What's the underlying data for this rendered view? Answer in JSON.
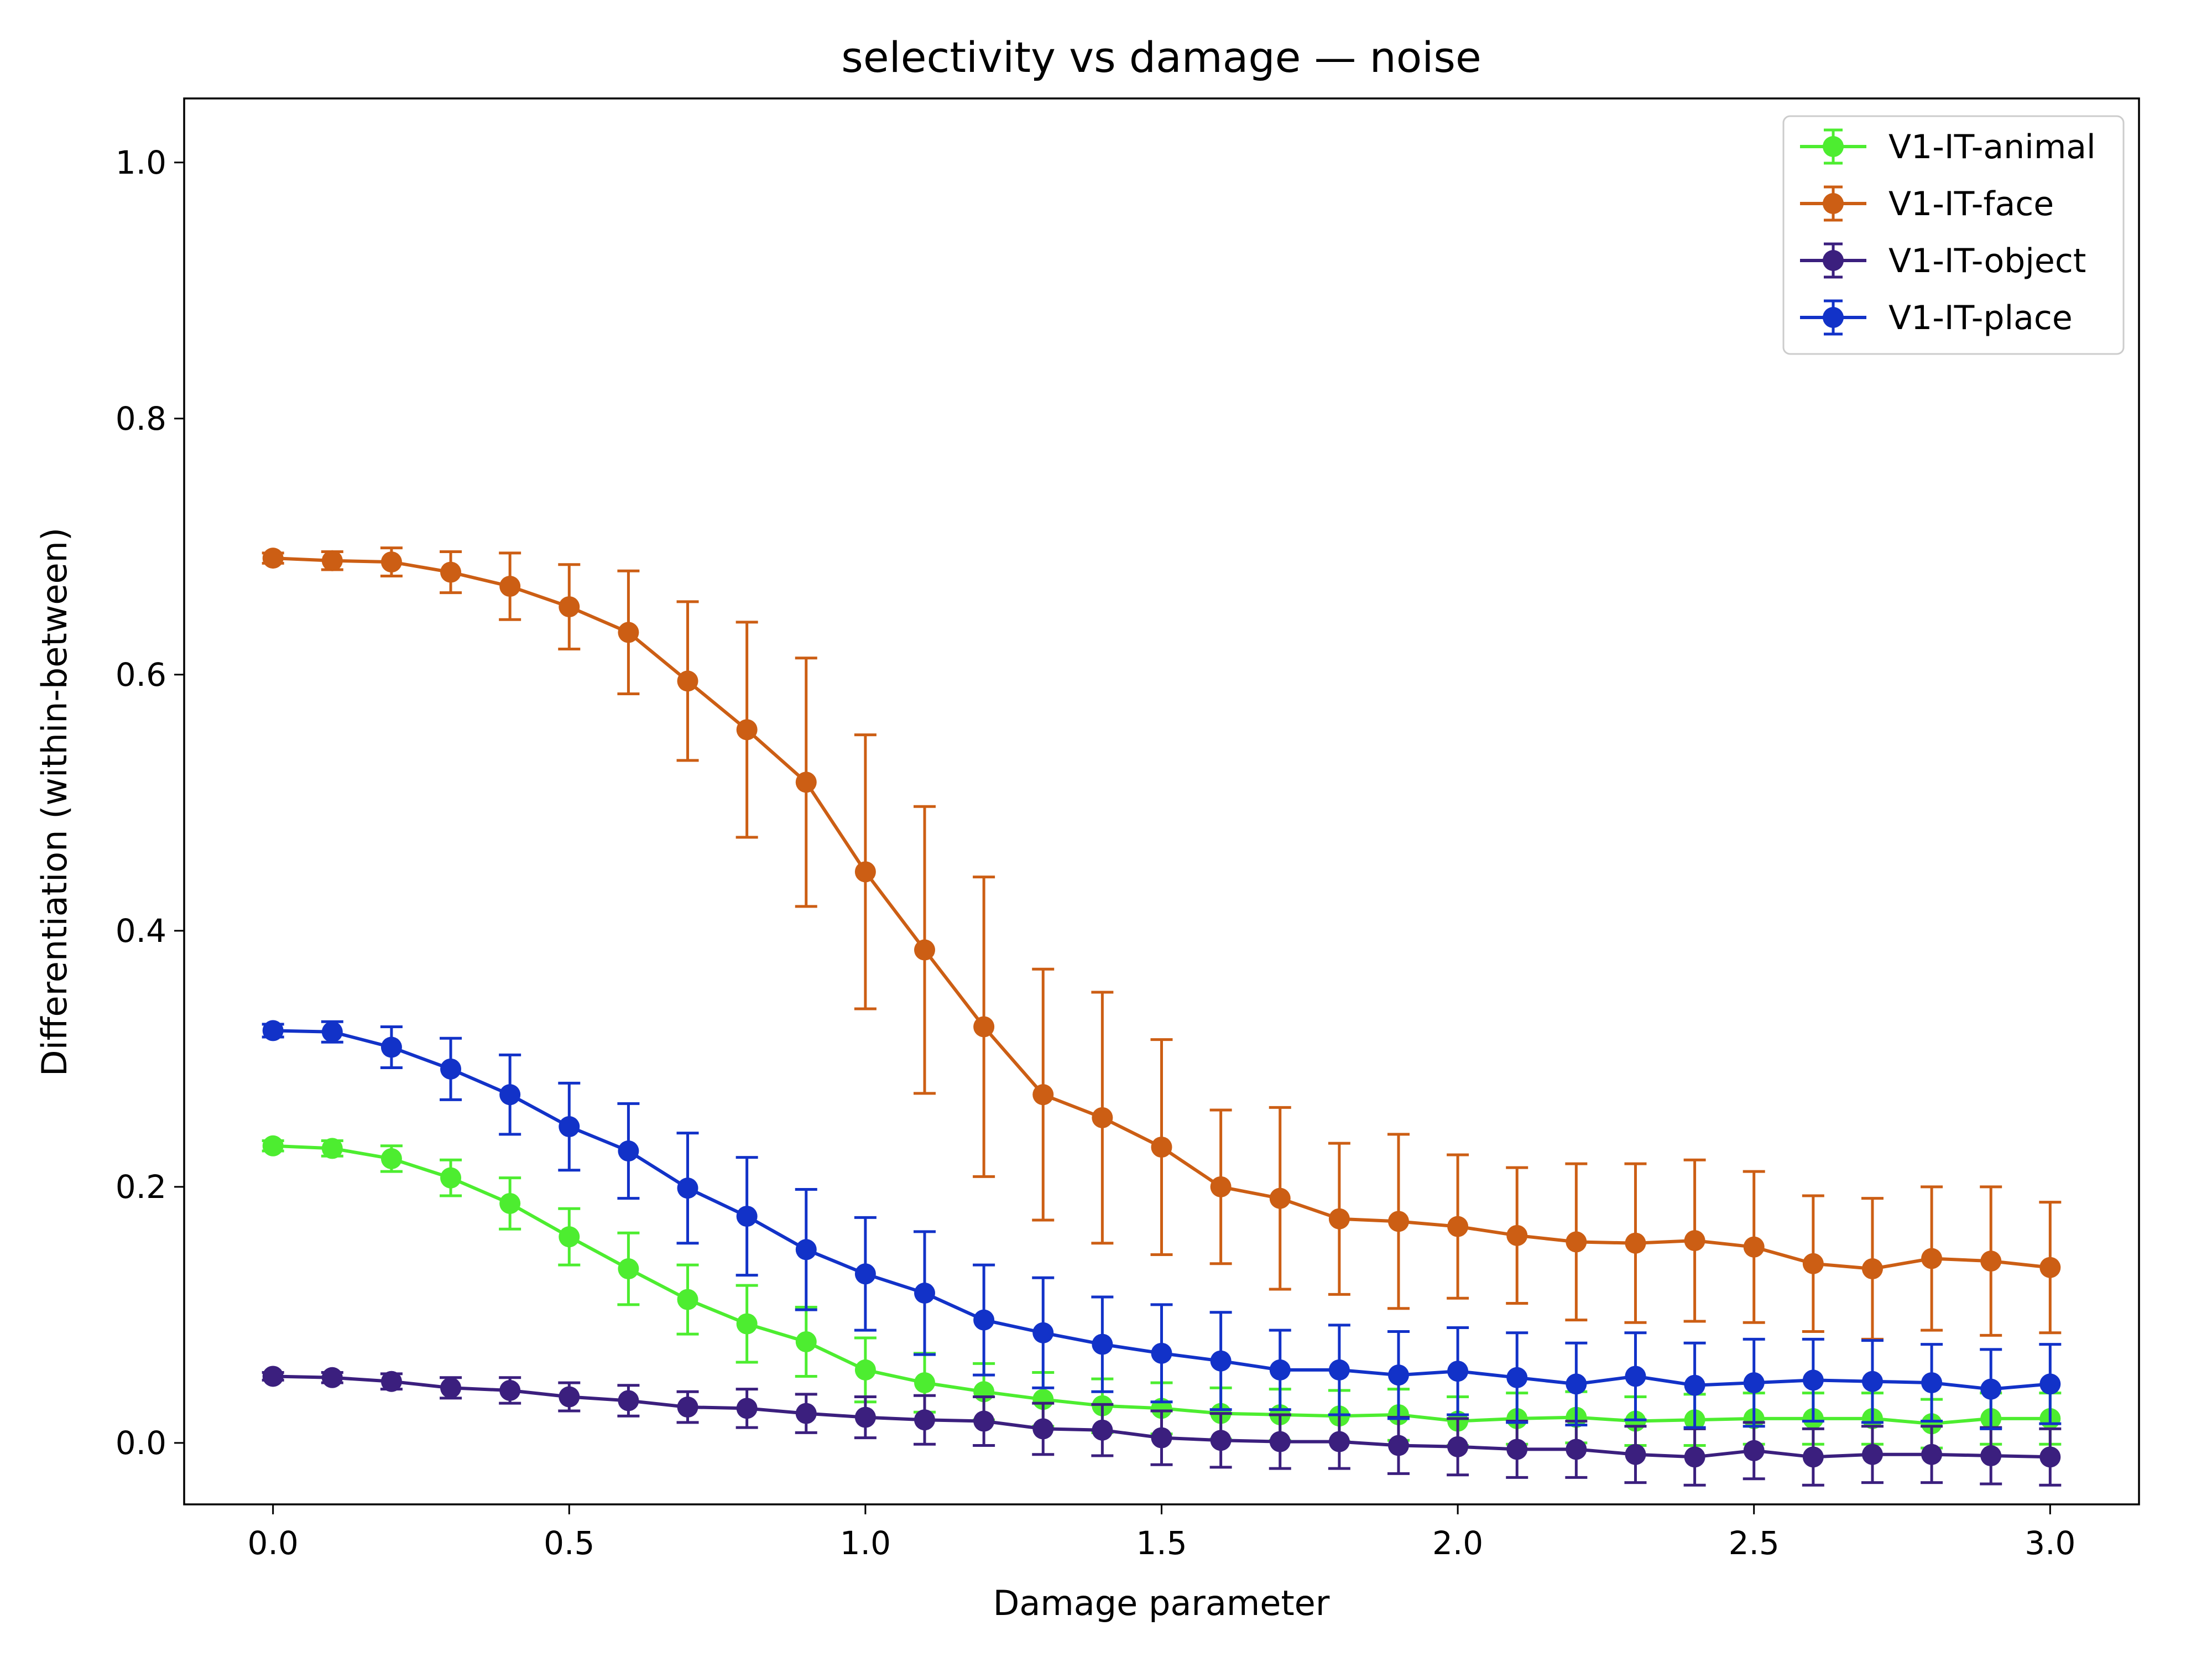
{
  "chart_data": {
    "type": "line",
    "title": "selectivity vs damage — noise",
    "xlabel": "Damage parameter",
    "ylabel": "Differentiation (within-between)",
    "xlim": [
      -0.15,
      3.15
    ],
    "ylim": [
      -0.048,
      1.05
    ],
    "xticks": [
      0.0,
      0.5,
      1.0,
      1.5,
      2.0,
      2.5,
      3.0
    ],
    "xtick_labels": [
      "0.0",
      "0.5",
      "1.0",
      "1.5",
      "2.0",
      "2.5",
      "3.0"
    ],
    "yticks": [
      0.0,
      0.2,
      0.4,
      0.6,
      0.8,
      1.0
    ],
    "ytick_labels": [
      "0.0",
      "0.2",
      "0.4",
      "0.6",
      "0.8",
      "1.0"
    ],
    "grid": false,
    "legend_position": "top-right",
    "error_bars": true,
    "x": [
      0.0,
      0.1,
      0.2,
      0.3,
      0.4,
      0.5,
      0.6,
      0.7,
      0.8,
      0.9,
      1.0,
      1.1,
      1.2,
      1.3,
      1.4,
      1.5,
      1.6,
      1.7,
      1.8,
      1.9,
      2.0,
      2.1,
      2.2,
      2.3,
      2.4,
      2.5,
      2.6,
      2.7,
      2.8,
      2.9,
      3.0
    ],
    "series": [
      {
        "name": "V1-IT-animal",
        "color": "#4ded30",
        "values": [
          0.232,
          0.23,
          0.222,
          0.207,
          0.187,
          0.161,
          0.136,
          0.112,
          0.093,
          0.079,
          0.057,
          0.047,
          0.04,
          0.034,
          0.029,
          0.027,
          0.023,
          0.022,
          0.021,
          0.022,
          0.017,
          0.019,
          0.02,
          0.017,
          0.018,
          0.019,
          0.019,
          0.019,
          0.015,
          0.019,
          0.019
        ],
        "errors": [
          0.004,
          0.006,
          0.01,
          0.014,
          0.02,
          0.022,
          0.028,
          0.027,
          0.03,
          0.027,
          0.025,
          0.023,
          0.022,
          0.021,
          0.021,
          0.02,
          0.02,
          0.02,
          0.02,
          0.02,
          0.019,
          0.02,
          0.02,
          0.019,
          0.02,
          0.02,
          0.02,
          0.02,
          0.019,
          0.02,
          0.02
        ]
      },
      {
        "name": "V1-IT-face",
        "color": "#cc5e14",
        "values": [
          0.691,
          0.689,
          0.688,
          0.68,
          0.669,
          0.653,
          0.633,
          0.595,
          0.557,
          0.516,
          0.446,
          0.385,
          0.325,
          0.272,
          0.254,
          0.231,
          0.2,
          0.191,
          0.175,
          0.173,
          0.169,
          0.162,
          0.157,
          0.156,
          0.158,
          0.153,
          0.14,
          0.136,
          0.144,
          0.142,
          0.137
        ],
        "errors": [
          0.004,
          0.007,
          0.011,
          0.016,
          0.026,
          0.033,
          0.048,
          0.062,
          0.084,
          0.097,
          0.107,
          0.112,
          0.117,
          0.098,
          0.098,
          0.084,
          0.06,
          0.071,
          0.059,
          0.068,
          0.056,
          0.053,
          0.061,
          0.062,
          0.063,
          0.059,
          0.053,
          0.055,
          0.056,
          0.058,
          0.051
        ]
      },
      {
        "name": "V1-IT-object",
        "color": "#3b1f7e",
        "values": [
          0.052,
          0.051,
          0.048,
          0.043,
          0.041,
          0.036,
          0.033,
          0.028,
          0.027,
          0.023,
          0.02,
          0.018,
          0.017,
          0.011,
          0.01,
          0.004,
          0.002,
          0.001,
          0.001,
          -0.002,
          -0.003,
          -0.005,
          -0.005,
          -0.009,
          -0.011,
          -0.006,
          -0.011,
          -0.009,
          -0.009,
          -0.01,
          -0.011
        ],
        "errors": [
          0.003,
          0.004,
          0.006,
          0.008,
          0.01,
          0.011,
          0.012,
          0.012,
          0.015,
          0.015,
          0.016,
          0.019,
          0.019,
          0.02,
          0.02,
          0.021,
          0.021,
          0.021,
          0.021,
          0.022,
          0.022,
          0.022,
          0.022,
          0.022,
          0.022,
          0.022,
          0.022,
          0.022,
          0.022,
          0.022,
          0.022
        ]
      },
      {
        "name": "V1-IT-place",
        "color": "#1232c8",
        "values": [
          0.322,
          0.321,
          0.309,
          0.292,
          0.272,
          0.247,
          0.228,
          0.199,
          0.177,
          0.151,
          0.132,
          0.117,
          0.096,
          0.086,
          0.077,
          0.07,
          0.064,
          0.057,
          0.057,
          0.053,
          0.056,
          0.051,
          0.046,
          0.052,
          0.045,
          0.047,
          0.049,
          0.048,
          0.047,
          0.042,
          0.046
        ],
        "errors": [
          0.005,
          0.008,
          0.016,
          0.024,
          0.031,
          0.034,
          0.037,
          0.043,
          0.046,
          0.047,
          0.044,
          0.048,
          0.043,
          0.043,
          0.037,
          0.038,
          0.038,
          0.031,
          0.035,
          0.034,
          0.034,
          0.035,
          0.032,
          0.034,
          0.033,
          0.034,
          0.032,
          0.032,
          0.03,
          0.031,
          0.031
        ]
      }
    ]
  }
}
